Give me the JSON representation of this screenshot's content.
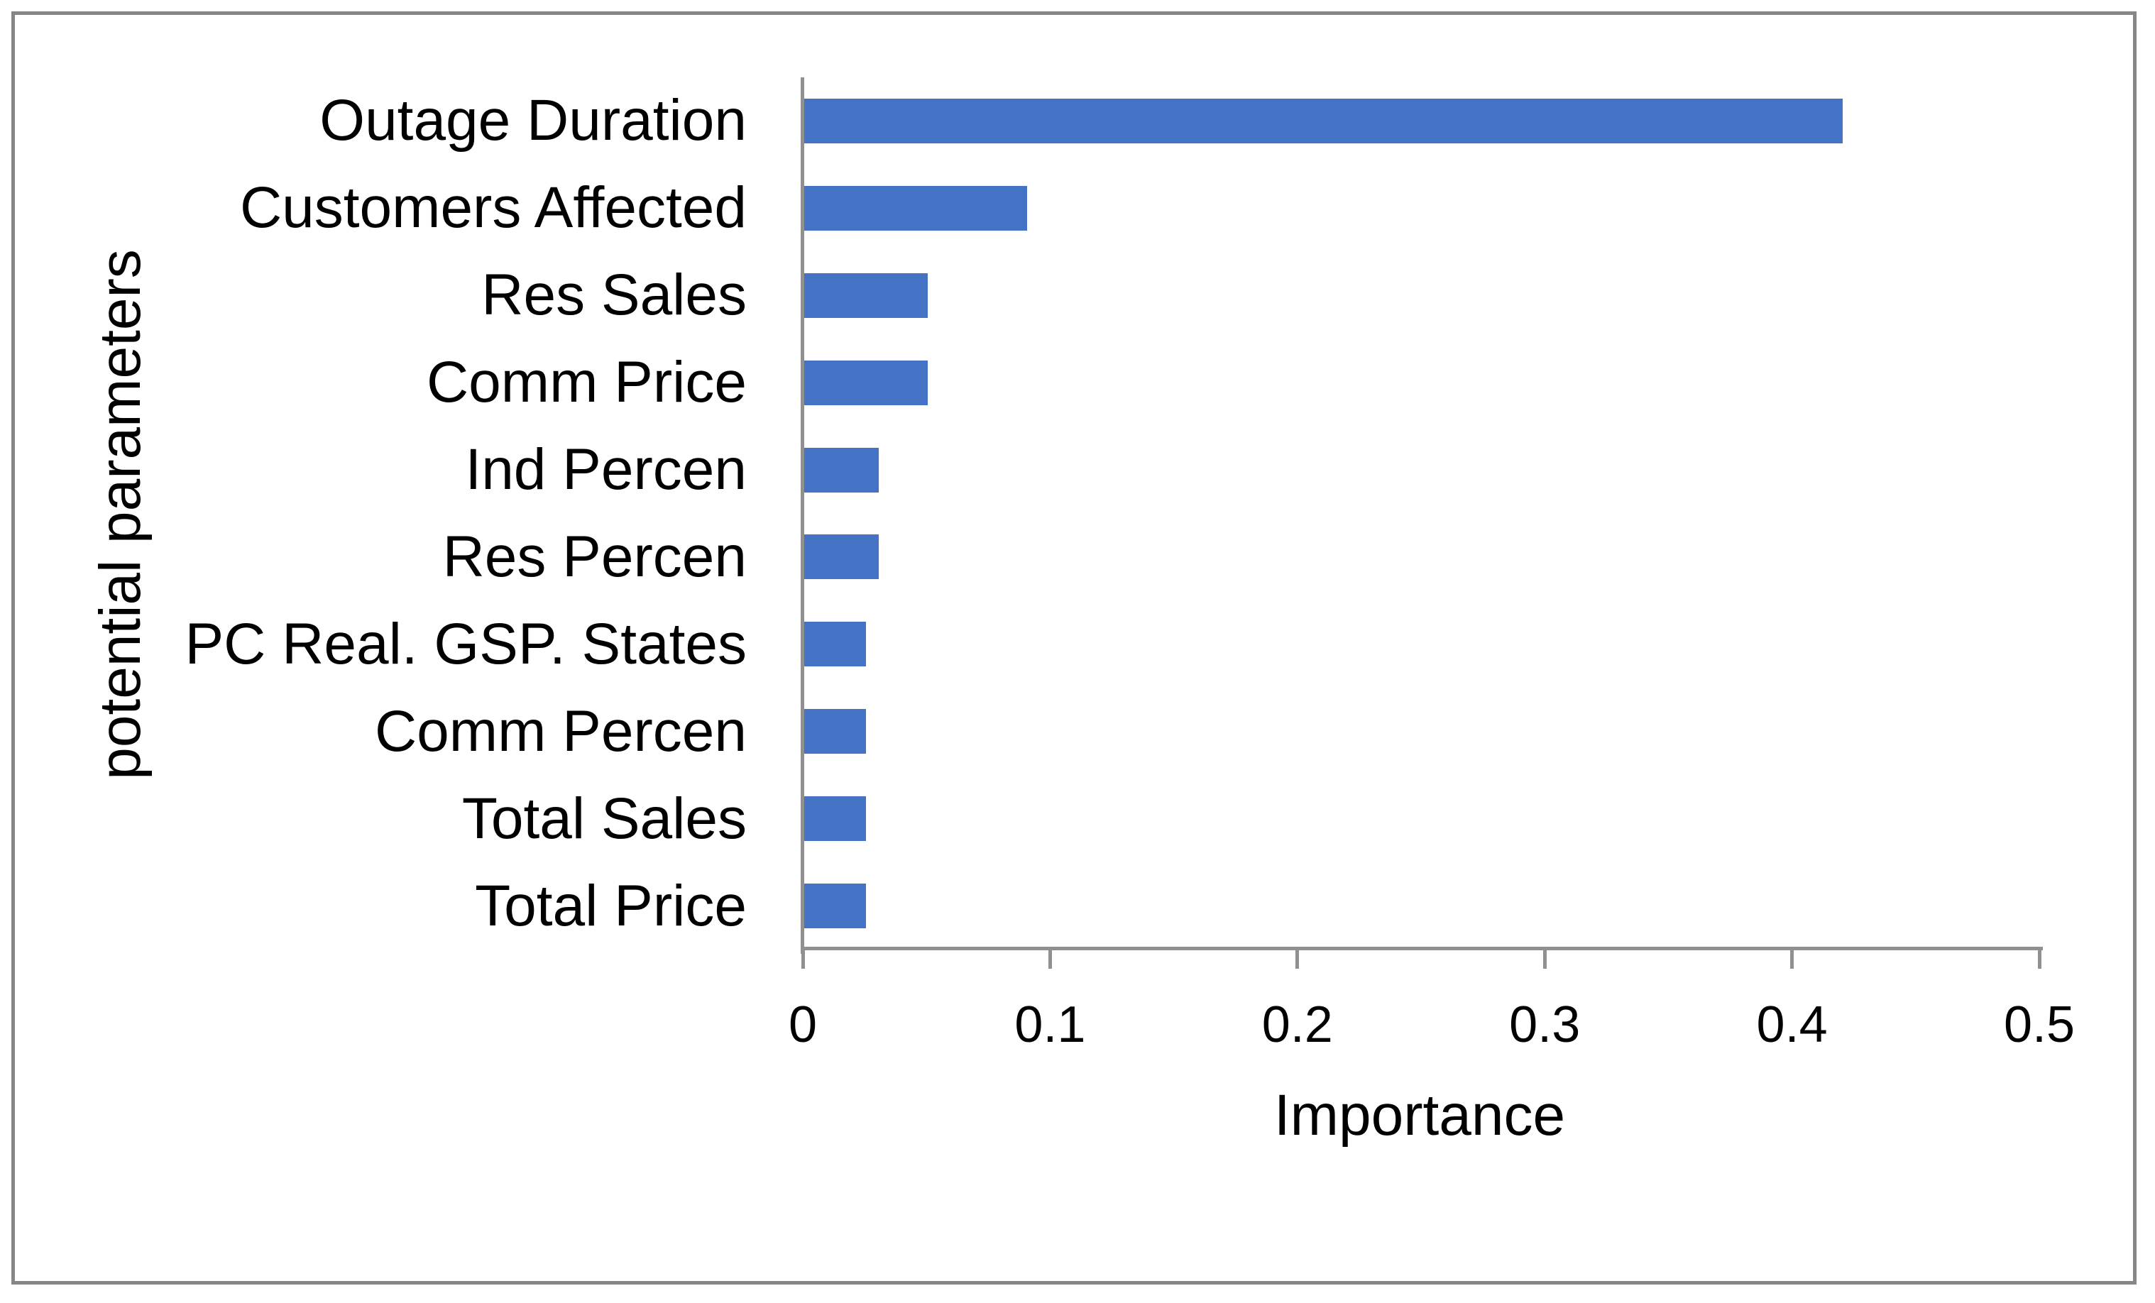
{
  "window": {
    "background": "#ffffff",
    "frame_color": "#868686"
  },
  "chart_data": {
    "type": "bar",
    "orientation": "horizontal",
    "categories": [
      "Outage Duration",
      "Customers Affected",
      "Res Sales",
      "Comm Price",
      "Ind Percen",
      "Res Percen",
      "PC Real. GSP. States",
      "Comm Percen",
      "Total Sales",
      "Total Price"
    ],
    "values": [
      0.42,
      0.09,
      0.05,
      0.05,
      0.03,
      0.03,
      0.025,
      0.025,
      0.025,
      0.025
    ],
    "xlabel": "Importance",
    "ylabel": "potential parameters",
    "xlim": [
      0,
      0.5
    ],
    "xticks": [
      "0",
      "0.1",
      "0.2",
      "0.3",
      "0.4",
      "0.5"
    ],
    "grid": false,
    "legend": "none",
    "bar_color": "#4472C4",
    "axis_color": "#909090",
    "text_color": "#000000"
  }
}
